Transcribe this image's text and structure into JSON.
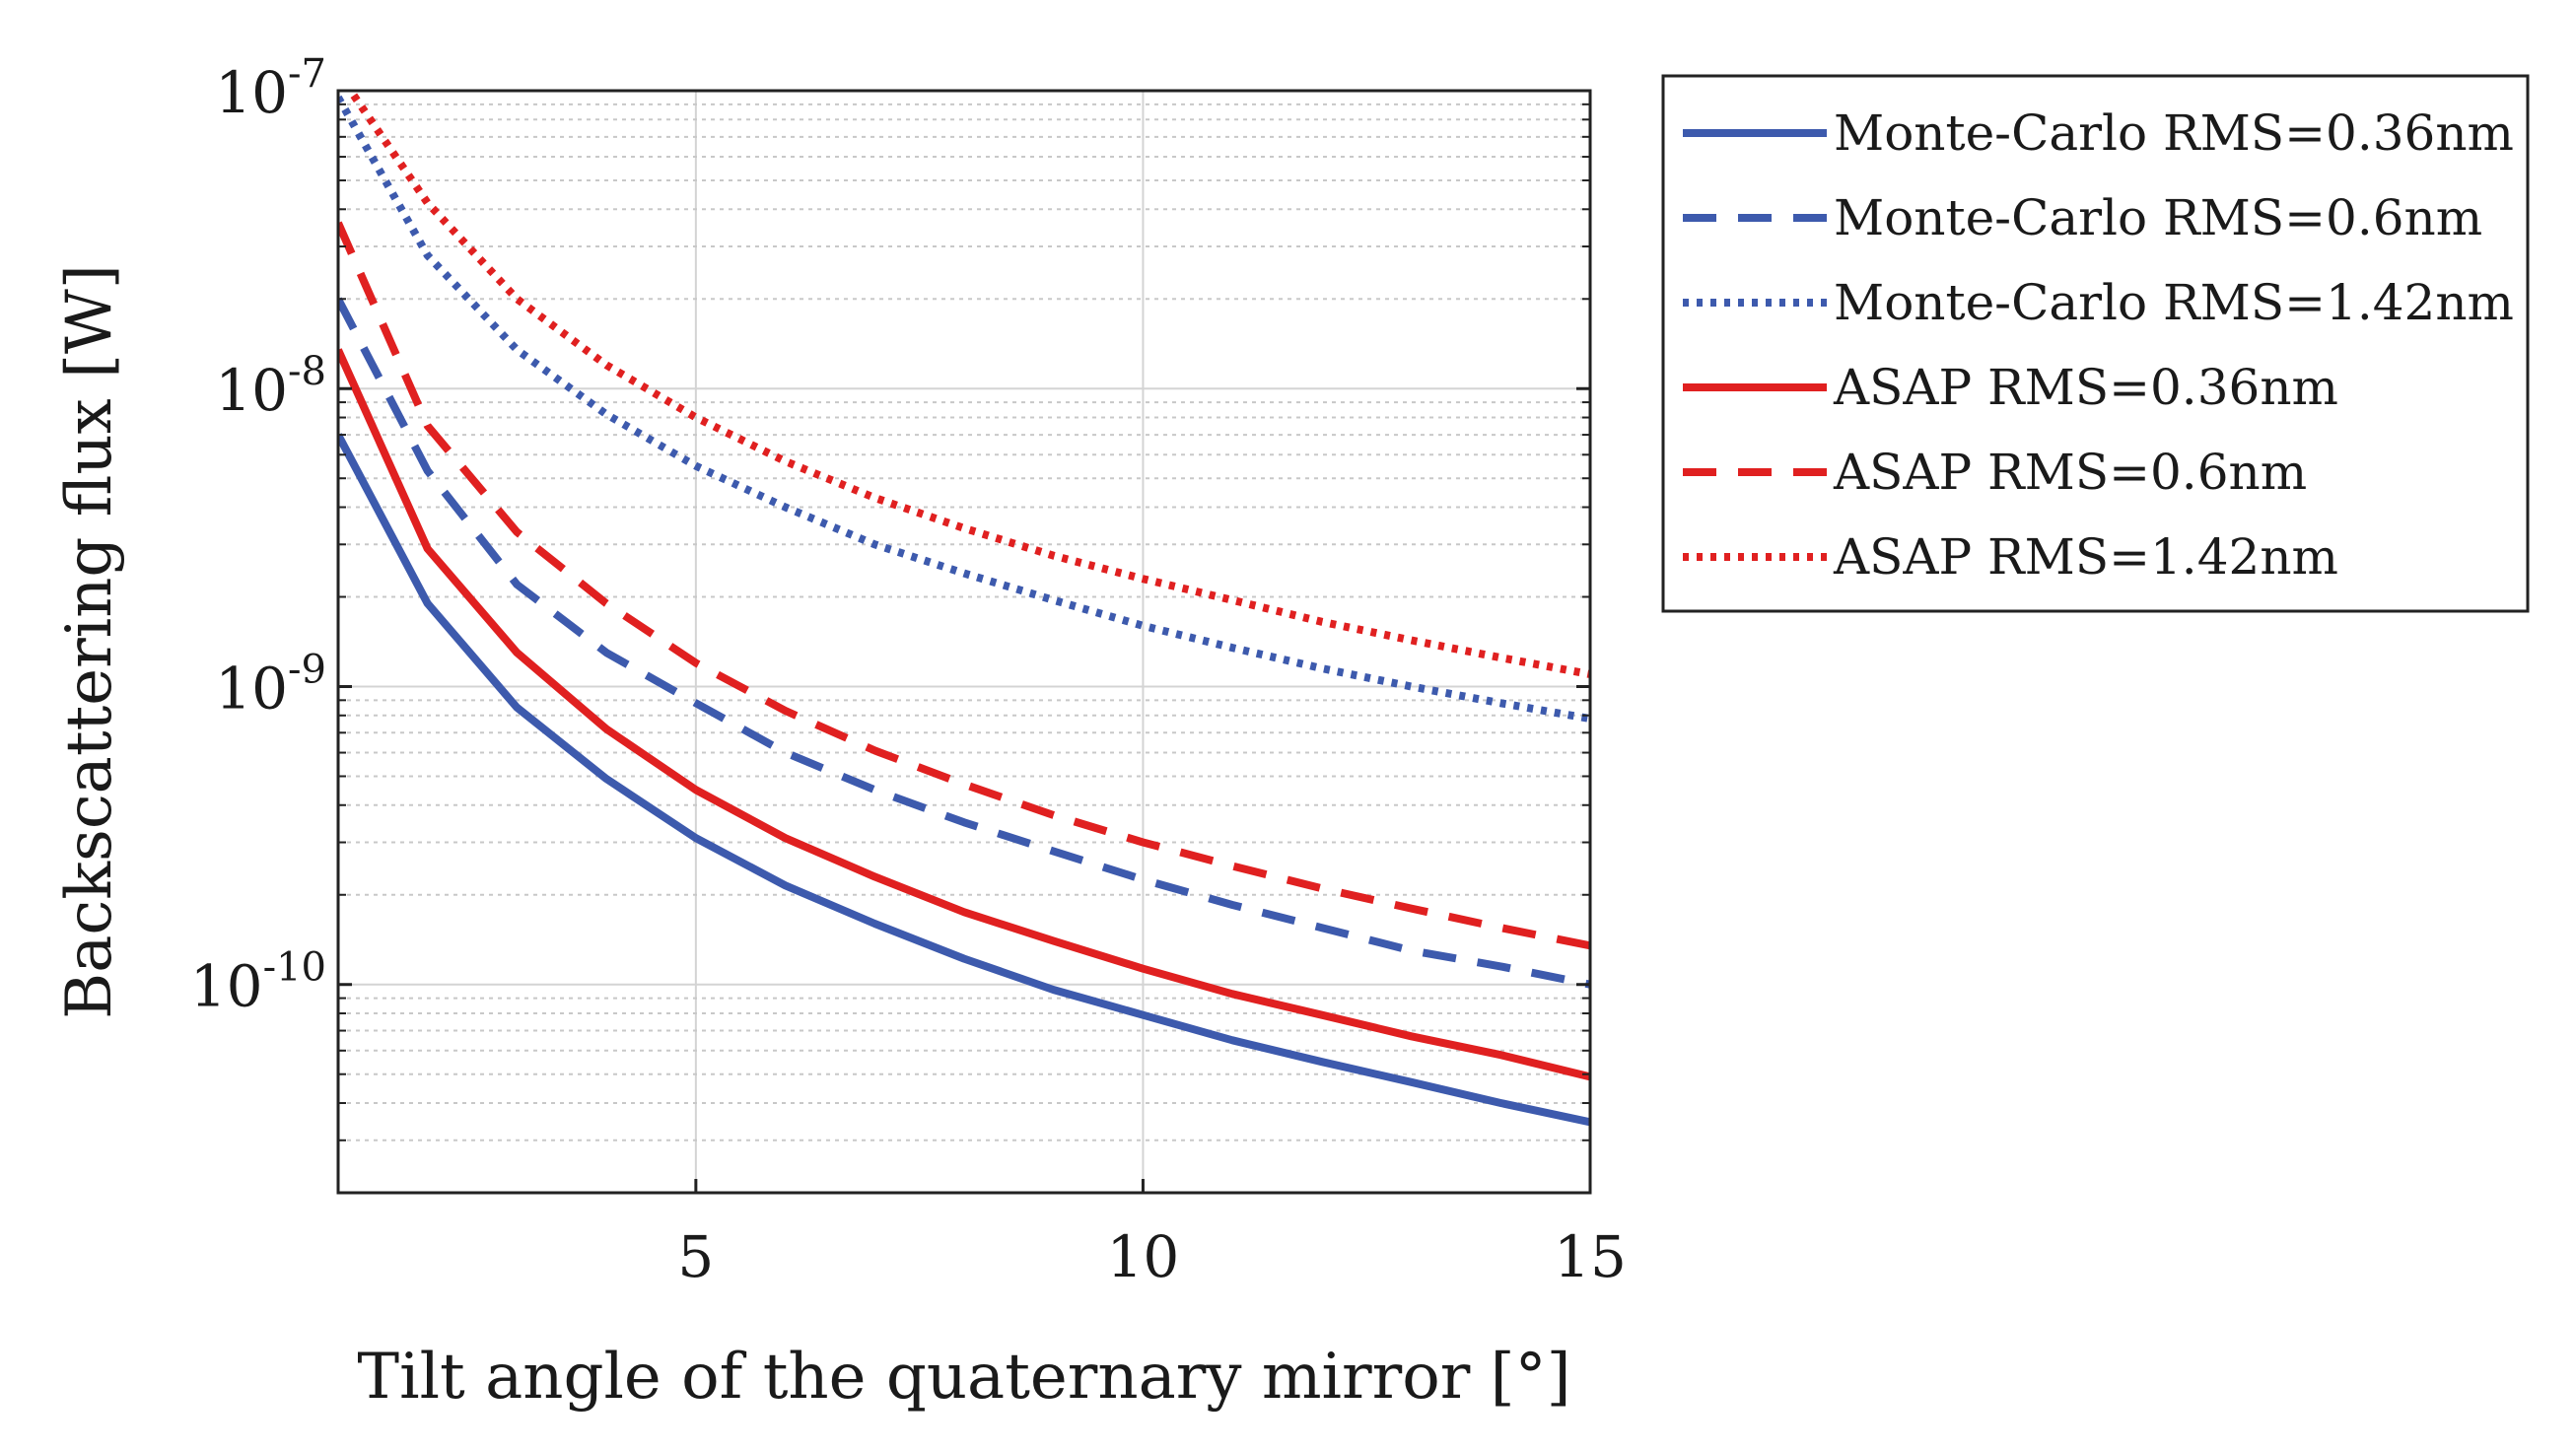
{
  "chart_data": {
    "type": "line",
    "title": "",
    "xlabel": "Tilt angle of the quaternary mirror  [°]",
    "ylabel": "Backscattering flux [W]",
    "xlim": [
      1,
      15
    ],
    "ylim": [
      2e-11,
      1e-07
    ],
    "yscale": "log",
    "grid": true,
    "legend_position": "outside-right",
    "x_ticks": [
      5,
      10,
      15
    ],
    "x_tick_labels": [
      "5",
      "10",
      "15"
    ],
    "y_ticks": [
      1e-10,
      1e-09,
      1e-08,
      1e-07
    ],
    "y_tick_labels": [
      {
        "base": "10",
        "exp": "-10"
      },
      {
        "base": "10",
        "exp": "-9"
      },
      {
        "base": "10",
        "exp": "-8"
      },
      {
        "base": "10",
        "exp": "-7"
      }
    ],
    "x": [
      1,
      2,
      3,
      4,
      5,
      6,
      7,
      8,
      9,
      10,
      11,
      12,
      13,
      14,
      15
    ],
    "series": [
      {
        "name": "Monte-Carlo RMS=0.36nm",
        "color": "#3d5aad",
        "dash": "solid",
        "values": [
          7e-09,
          1.9e-09,
          8.5e-10,
          4.9e-10,
          3.1e-10,
          2.15e-10,
          1.6e-10,
          1.22e-10,
          9.6e-11,
          7.9e-11,
          6.5e-11,
          5.5e-11,
          4.7e-11,
          4e-11,
          3.45e-11
        ]
      },
      {
        "name": "Monte-Carlo RMS=0.6nm",
        "color": "#3d5aad",
        "dash": "dashed",
        "values": [
          2e-08,
          5.3e-09,
          2.2e-09,
          1.3e-09,
          8.8e-10,
          6e-10,
          4.5e-10,
          3.5e-10,
          2.8e-10,
          2.25e-10,
          1.85e-10,
          1.55e-10,
          1.3e-10,
          1.15e-10,
          1e-10
        ]
      },
      {
        "name": "Monte-Carlo RMS=1.42nm",
        "color": "#3d5aad",
        "dash": "dotted",
        "values": [
          9.5e-08,
          2.8e-08,
          1.35e-08,
          8.2e-09,
          5.5e-09,
          4e-09,
          3e-09,
          2.4e-09,
          1.95e-09,
          1.6e-09,
          1.35e-09,
          1.15e-09,
          1e-09,
          8.8e-10,
          7.8e-10
        ]
      },
      {
        "name": "ASAP RMS=0.36nm",
        "color": "#e02020",
        "dash": "solid",
        "values": [
          1.35e-08,
          2.9e-09,
          1.3e-09,
          7.2e-10,
          4.5e-10,
          3.1e-10,
          2.3e-10,
          1.75e-10,
          1.4e-10,
          1.13e-10,
          9.3e-11,
          7.9e-11,
          6.7e-11,
          5.8e-11,
          4.9e-11
        ]
      },
      {
        "name": "ASAP RMS=0.6nm",
        "color": "#e02020",
        "dash": "dashed",
        "values": [
          3.6e-08,
          7.5e-09,
          3.3e-09,
          1.9e-09,
          1.2e-09,
          8.3e-10,
          6.1e-10,
          4.7e-10,
          3.7e-10,
          3e-10,
          2.5e-10,
          2.1e-10,
          1.8e-10,
          1.55e-10,
          1.35e-10
        ]
      },
      {
        "name": "ASAP RMS=1.42nm",
        "color": "#e02020",
        "dash": "dotted",
        "values": [
          1.15e-07,
          4.2e-08,
          2e-08,
          1.2e-08,
          8e-09,
          5.7e-09,
          4.3e-09,
          3.4e-09,
          2.75e-09,
          2.3e-09,
          1.95e-09,
          1.65e-09,
          1.43e-09,
          1.25e-09,
          1.1e-09
        ]
      }
    ]
  }
}
